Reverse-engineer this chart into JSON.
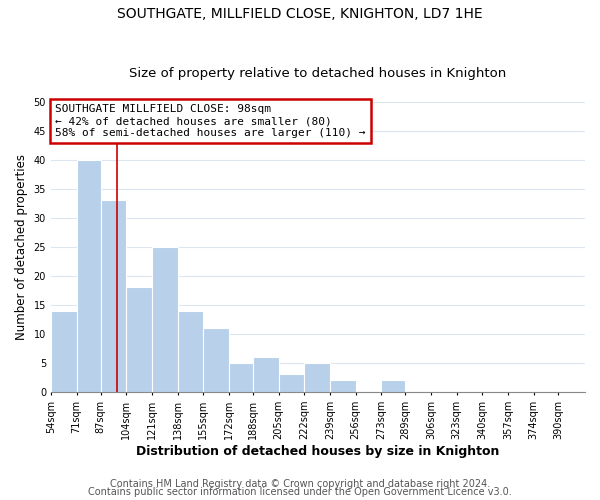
{
  "title": "SOUTHGATE, MILLFIELD CLOSE, KNIGHTON, LD7 1HE",
  "subtitle": "Size of property relative to detached houses in Knighton",
  "xlabel": "Distribution of detached houses by size in Knighton",
  "ylabel": "Number of detached properties",
  "bar_values": [
    14,
    40,
    33,
    18,
    25,
    14,
    11,
    5,
    6,
    3,
    5,
    2,
    0,
    2,
    0,
    0,
    0
  ],
  "bar_left_edges": [
    54,
    71,
    87,
    104,
    121,
    138,
    155,
    172,
    188,
    205,
    222,
    239,
    256,
    273,
    289,
    306,
    323
  ],
  "bar_widths": [
    17,
    16,
    17,
    17,
    17,
    17,
    17,
    16,
    17,
    17,
    17,
    17,
    17,
    16,
    17,
    17,
    17
  ],
  "xtick_positions": [
    54,
    71,
    87,
    104,
    121,
    138,
    155,
    172,
    188,
    205,
    222,
    239,
    256,
    273,
    289,
    306,
    323,
    340,
    357,
    374,
    390
  ],
  "xtick_labels": [
    "54sqm",
    "71sqm",
    "87sqm",
    "104sqm",
    "121sqm",
    "138sqm",
    "155sqm",
    "172sqm",
    "188sqm",
    "205sqm",
    "222sqm",
    "239sqm",
    "256sqm",
    "273sqm",
    "289sqm",
    "306sqm",
    "323sqm",
    "340sqm",
    "357sqm",
    "374sqm",
    "390sqm"
  ],
  "ylim": [
    0,
    50
  ],
  "yticks": [
    0,
    5,
    10,
    15,
    20,
    25,
    30,
    35,
    40,
    45,
    50
  ],
  "bar_color": "#b8d0ea",
  "grid_color": "#dce6f0",
  "red_line_x": 98,
  "annotation_text": "SOUTHGATE MILLFIELD CLOSE: 98sqm\n← 42% of detached houses are smaller (80)\n58% of semi-detached houses are larger (110) →",
  "annotation_box_color": "#ffffff",
  "annotation_box_edge_color": "#cc0000",
  "footer_line1": "Contains HM Land Registry data © Crown copyright and database right 2024.",
  "footer_line2": "Contains public sector information licensed under the Open Government Licence v3.0.",
  "title_fontsize": 10,
  "subtitle_fontsize": 9.5,
  "xlabel_fontsize": 9,
  "ylabel_fontsize": 8.5,
  "annotation_fontsize": 8,
  "tick_fontsize": 7,
  "footer_fontsize": 7,
  "background_color": "#ffffff",
  "plot_bg_color": "#ffffff"
}
